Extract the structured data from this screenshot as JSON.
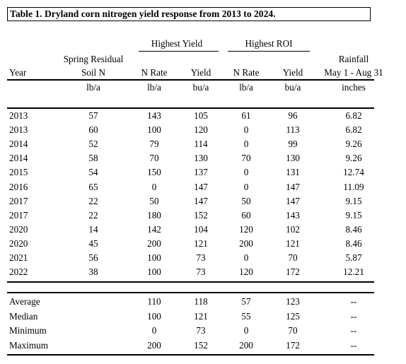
{
  "title": "Table 1. Dryland corn nitrogen yield response from 2013 to 2024.",
  "group_headers": {
    "highest_yield": "Highest Yield",
    "highest_roi": "Highest ROI"
  },
  "headers": {
    "year": "Year",
    "soil_n_line1": "Spring Residual",
    "soil_n_line2": "Soil N",
    "hy_n_rate": "N Rate",
    "hy_yield": "Yield",
    "roi_n_rate": "N Rate",
    "roi_yield": "Yield",
    "rain_line1": "Rainfall",
    "rain_line2": "May 1 - Aug 31"
  },
  "units": {
    "soil_n": "lb/a",
    "hy_n_rate": "lb/a",
    "hy_yield": "bu/a",
    "roi_n_rate": "lb/a",
    "roi_yield": "bu/a",
    "rainfall": "inches"
  },
  "rows": [
    [
      "2013",
      "57",
      "143",
      "105",
      "61",
      "96",
      "6.82"
    ],
    [
      "2013",
      "60",
      "100",
      "120",
      "0",
      "113",
      "6.82"
    ],
    [
      "2014",
      "52",
      "79",
      "114",
      "0",
      "99",
      "9.26"
    ],
    [
      "2014",
      "58",
      "70",
      "130",
      "70",
      "130",
      "9.26"
    ],
    [
      "2015",
      "54",
      "150",
      "137",
      "0",
      "131",
      "12.74"
    ],
    [
      "2016",
      "65",
      "0",
      "147",
      "0",
      "147",
      "11.09"
    ],
    [
      "2017",
      "22",
      "50",
      "147",
      "50",
      "147",
      "9.15"
    ],
    [
      "2017",
      "22",
      "180",
      "152",
      "60",
      "143",
      "9.15"
    ],
    [
      "2020",
      "14",
      "142",
      "104",
      "120",
      "102",
      "8.46"
    ],
    [
      "2020",
      "45",
      "200",
      "121",
      "200",
      "121",
      "8.46"
    ],
    [
      "2021",
      "56",
      "100",
      "73",
      "0",
      "70",
      "5.87"
    ],
    [
      "2022",
      "38",
      "100",
      "73",
      "120",
      "172",
      "12.21"
    ]
  ],
  "summary": [
    [
      "Average",
      "",
      "110",
      "118",
      "57",
      "123",
      "--"
    ],
    [
      "Median",
      "",
      "100",
      "121",
      "55",
      "125",
      "--"
    ],
    [
      "Minimum",
      "",
      "0",
      "73",
      "0",
      "70",
      "--"
    ],
    [
      "Maximum",
      "",
      "200",
      "152",
      "200",
      "172",
      "--"
    ]
  ]
}
